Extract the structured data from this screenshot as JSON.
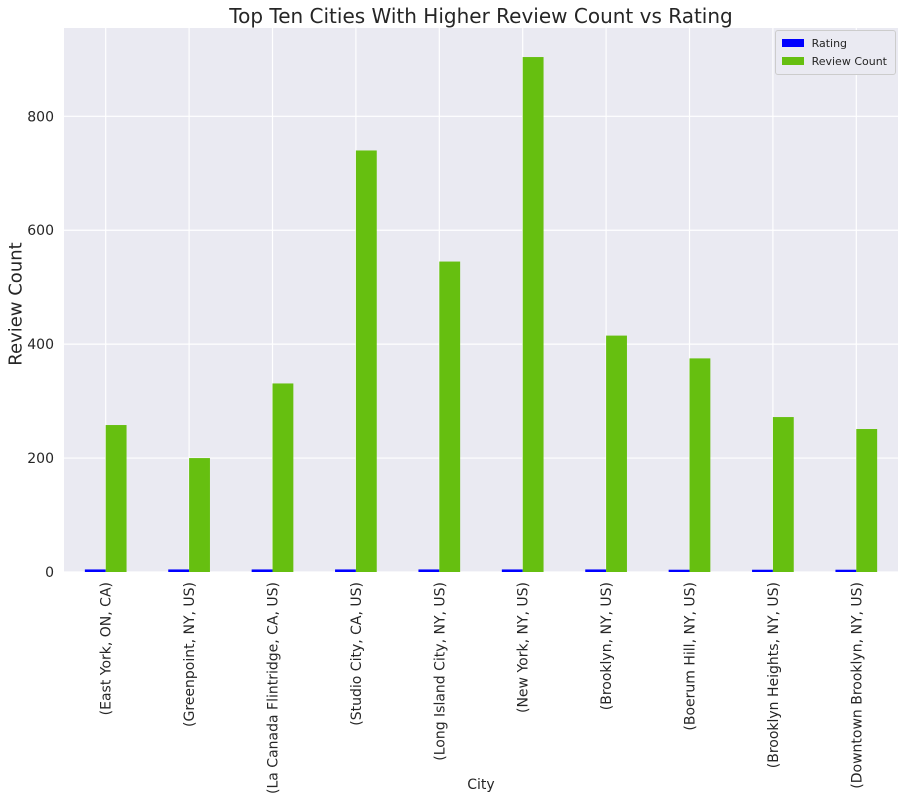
{
  "chart_data": {
    "type": "bar",
    "title": "Top Ten Cities With Higher Review Count vs Rating",
    "xlabel": "City",
    "ylabel": "Review Count",
    "ylim": [
      0,
      955
    ],
    "yticks": [
      0,
      200,
      400,
      600,
      800
    ],
    "categories": [
      "(East York, ON, CA)",
      "(Greenpoint, NY, US)",
      "(La Canada Flintridge, CA, US)",
      "(Studio City, CA, US)",
      "(Long Island City, NY, US)",
      "(New York, NY, US)",
      "(Brooklyn, NY, US)",
      "(Boerum Hill, NY, US)",
      "(Brooklyn Heights, NY, US)",
      "(Downtown Brooklyn, NY, US)"
    ],
    "series": [
      {
        "name": "Rating",
        "color": "#0000ff",
        "values": [
          4.5,
          4.5,
          4.5,
          4.5,
          4.5,
          4.5,
          4.5,
          4.0,
          4.0,
          4.0
        ]
      },
      {
        "name": "Review Count",
        "color": "#66bf10",
        "values": [
          258,
          200,
          331,
          740,
          545,
          904,
          415,
          375,
          272,
          251
        ]
      }
    ],
    "grid": true,
    "legend_position": "top-right"
  }
}
